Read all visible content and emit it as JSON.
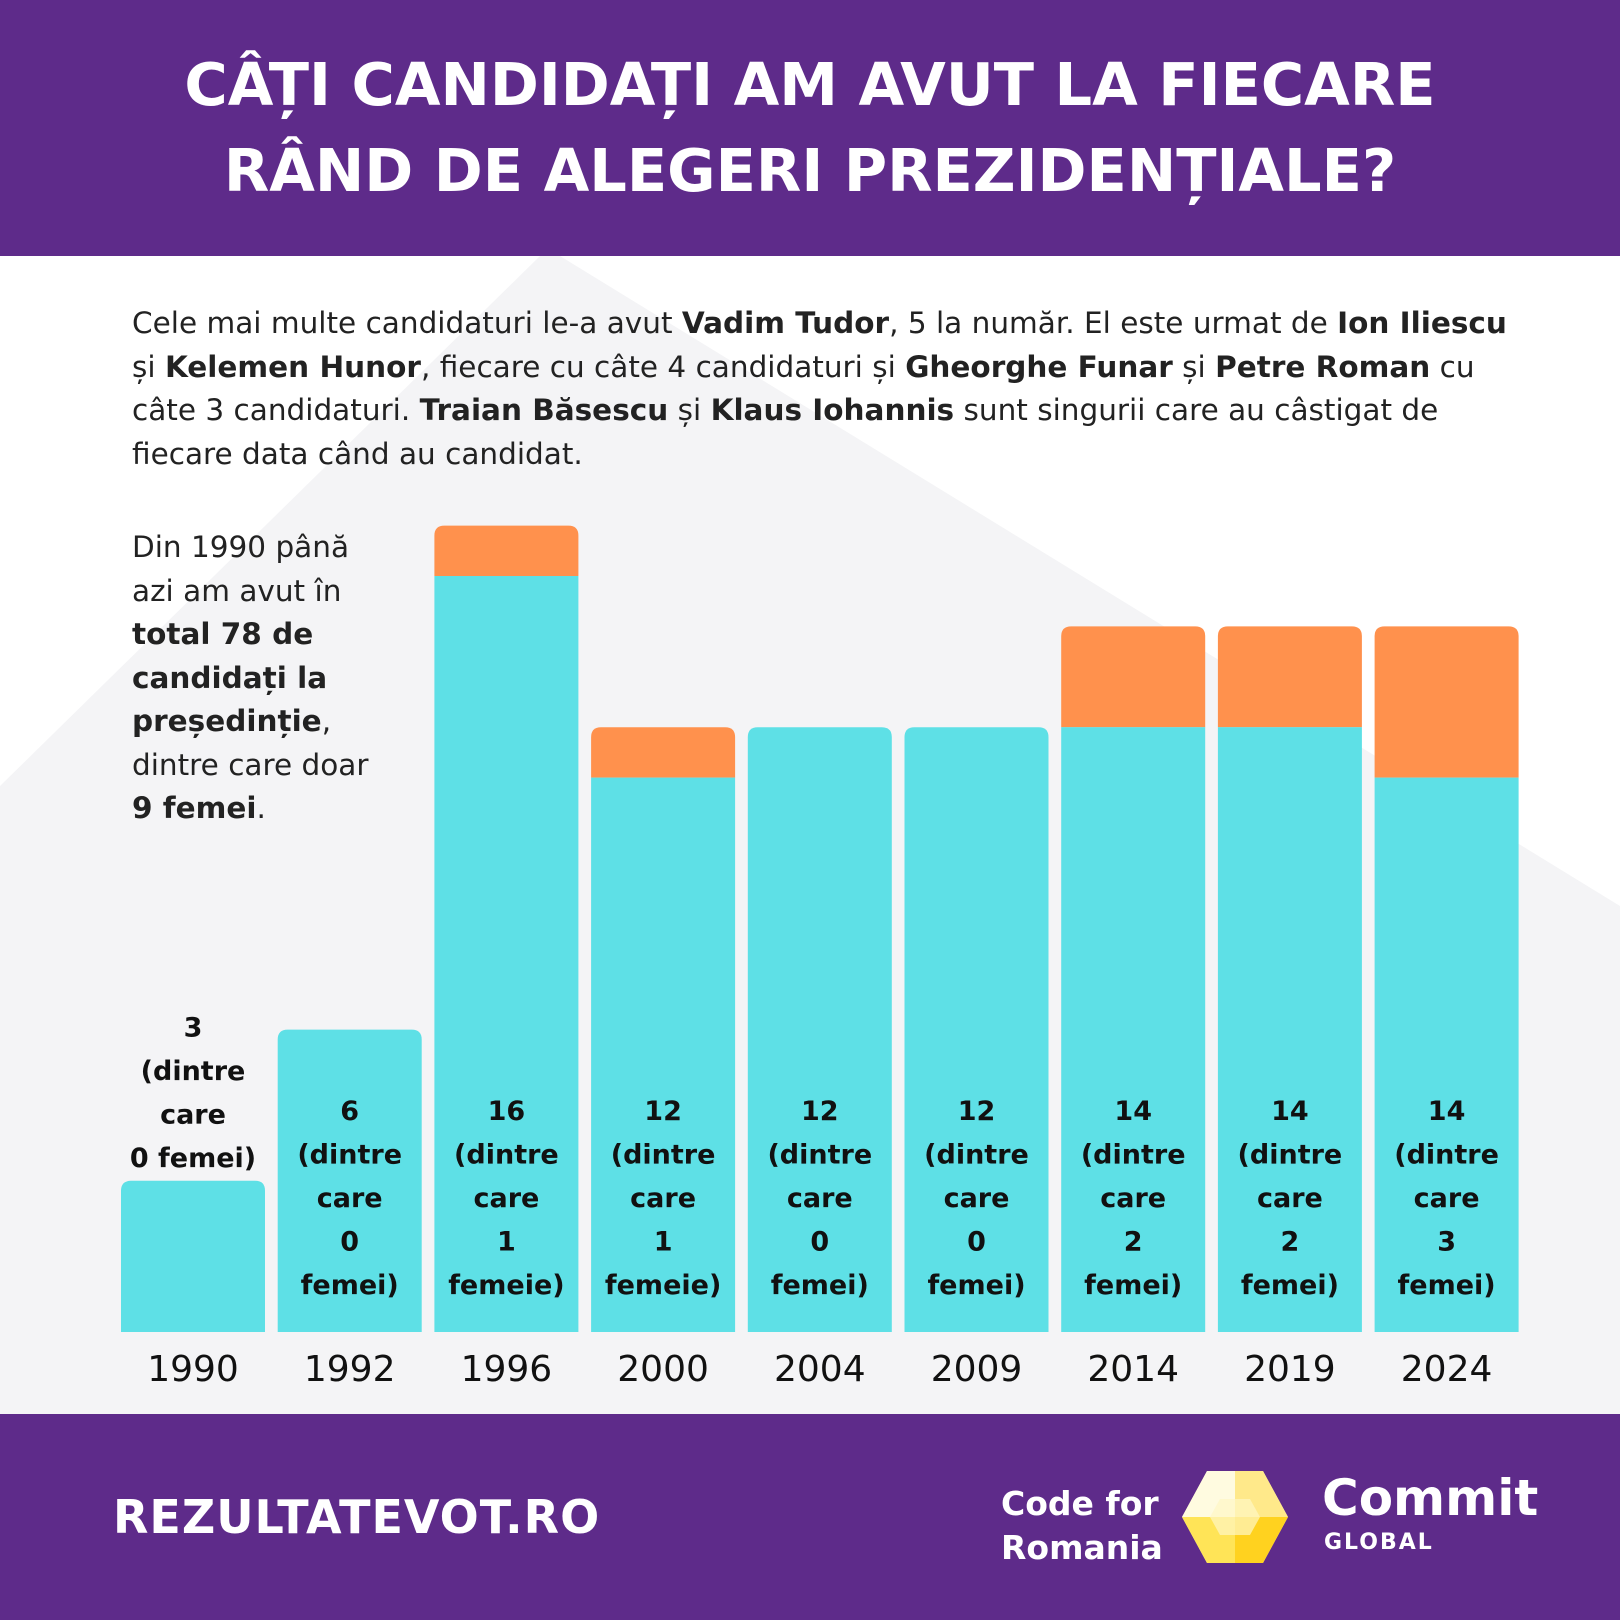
{
  "header": {
    "title": "CÂȚI CANDIDAȚI AM AVUT LA FIECARE RÂND DE ALEGERI PREZIDENȚIALE?"
  },
  "intro": {
    "p1": "Cele mai multe candidaturi le-a avut ",
    "b1": "Vadim Tudor",
    "p2": ", 5 la număr. El este urmat de ",
    "b2": "Ion Iliescu",
    "p3": " și ",
    "b3": "Kelemen Hunor",
    "p4": ", fiecare cu câte 4 candidaturi și ",
    "b4": "Gheorghe Funar",
    "p5": " și ",
    "b5": "Petre Roman",
    "p6": " cu câte 3 candidaturi. ",
    "b6": "Traian Băsescu",
    "p7": " și ",
    "b7": "Klaus Iohannis",
    "p8": " sunt singurii care au câstigat de fiecare data când au candidat."
  },
  "side_note": {
    "p1": "Din 1990 până azi am avut în ",
    "b1": "total 78 de candidați la președinție",
    "p2": ", dintre care doar ",
    "b2": "9 femei",
    "p3": "."
  },
  "chart_data": {
    "type": "bar",
    "stacked": true,
    "categories": [
      "1990",
      "1992",
      "1996",
      "2000",
      "2004",
      "2009",
      "2014",
      "2019",
      "2024"
    ],
    "series": [
      {
        "values": [
          3,
          6,
          15,
          11,
          12,
          12,
          12,
          12,
          11
        ]
      },
      {
        "values": [
          0,
          0,
          1,
          1,
          0,
          0,
          2,
          2,
          3
        ]
      }
    ],
    "totals": [
      3,
      6,
      16,
      12,
      12,
      12,
      14,
      14,
      14
    ],
    "bar_labels": [
      [
        "3",
        "(dintre",
        "care",
        "0 femei)"
      ],
      [
        "6",
        "(dintre",
        "care",
        "0",
        "femei)"
      ],
      [
        "16",
        "(dintre",
        "care",
        "1",
        "femeie)"
      ],
      [
        "12",
        "(dintre",
        "care",
        "1",
        "femeie)"
      ],
      [
        "12",
        "(dintre",
        "care",
        "0",
        "femei)"
      ],
      [
        "12",
        "(dintre",
        "care",
        "0",
        "femei)"
      ],
      [
        "14",
        "(dintre",
        "care",
        "2",
        "femei)"
      ],
      [
        "14",
        "(dintre",
        "care",
        "2",
        "femei)"
      ],
      [
        "14",
        "(dintre",
        "care",
        "3",
        "femei)"
      ]
    ],
    "ylim": [
      0,
      16
    ],
    "grid": false,
    "legend": "none",
    "colors": {
      "men": "#5ee0e6",
      "women": "#ff914d"
    }
  },
  "footer": {
    "site": "REZULTATEVOT.RO",
    "org_line1": "Code for",
    "org_line2": "Romania",
    "brand": "Commit",
    "brand_sub": "GLOBAL"
  },
  "colors": {
    "purple": "#5e2b8a",
    "teal": "#5ee0e6",
    "orange": "#ff914d"
  }
}
